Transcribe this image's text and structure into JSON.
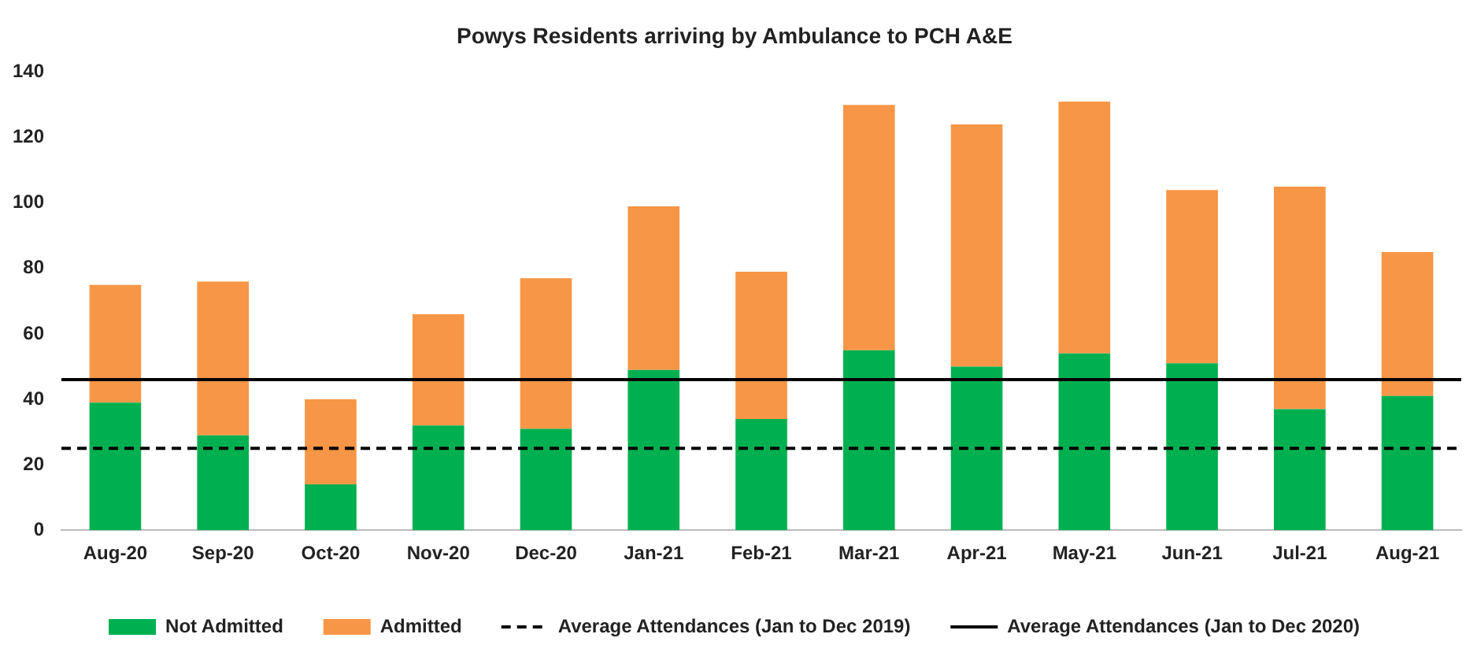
{
  "chart_data": {
    "type": "bar",
    "title": "Powys Residents arriving by Ambulance to PCH A&E",
    "categories": [
      "Aug-20",
      "Sep-20",
      "Oct-20",
      "Nov-20",
      "Dec-20",
      "Jan-21",
      "Feb-21",
      "Mar-21",
      "Apr-21",
      "May-21",
      "Jun-21",
      "Jul-21",
      "Aug-21"
    ],
    "series": [
      {
        "name": "Not Admitted",
        "color": "#00b050",
        "values": [
          39,
          29,
          14,
          32,
          31,
          49,
          34,
          55,
          50,
          54,
          51,
          37,
          41
        ]
      },
      {
        "name": "Admitted",
        "color": "#f79646",
        "values": [
          36,
          47,
          26,
          34,
          46,
          50,
          45,
          75,
          74,
          77,
          53,
          68,
          44
        ]
      }
    ],
    "stacked": true,
    "ylim": [
      0,
      140
    ],
    "yticks": [
      0,
      20,
      40,
      60,
      80,
      100,
      120,
      140
    ],
    "grid": false,
    "legend": "bottom",
    "ref_lines": [
      {
        "axis": "y",
        "value": 25,
        "label": "Average Attendances (Jan to Dec 2019)",
        "color": "#000000",
        "line_style": "dashed"
      },
      {
        "axis": "y",
        "value": 46,
        "label": "Average Attendances (Jan to Dec 2020)",
        "color": "#000000",
        "line_style": "solid"
      }
    ]
  }
}
